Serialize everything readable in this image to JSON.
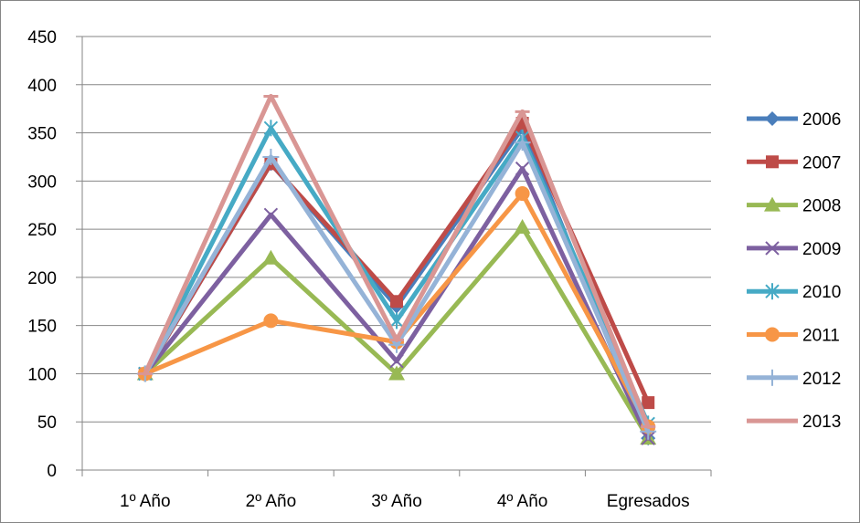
{
  "chart_data": {
    "type": "line",
    "title": "",
    "xlabel": "",
    "ylabel": "",
    "categories": [
      "1º Año",
      "2º Año",
      "3º Año",
      "4º Año",
      "Egresados"
    ],
    "ylim": [
      0,
      450
    ],
    "yticks": [
      0,
      50,
      100,
      150,
      200,
      250,
      300,
      350,
      400,
      450
    ],
    "grid": "horizontal",
    "legend_position": "right",
    "series": [
      {
        "name": "2006",
        "color": "#4a7ebb",
        "marker": "diamond",
        "values": [
          100,
          318,
          170,
          355,
          33
        ]
      },
      {
        "name": "2007",
        "color": "#be4b48",
        "marker": "square",
        "values": [
          100,
          318,
          175,
          360,
          70
        ]
      },
      {
        "name": "2008",
        "color": "#98b954",
        "marker": "triangle",
        "values": [
          100,
          220,
          100,
          252,
          33
        ]
      },
      {
        "name": "2009",
        "color": "#7d60a0",
        "marker": "x",
        "values": [
          100,
          265,
          113,
          313,
          33
        ]
      },
      {
        "name": "2010",
        "color": "#46aac5",
        "marker": "star",
        "values": [
          100,
          355,
          155,
          345,
          48
        ]
      },
      {
        "name": "2011",
        "color": "#f79646",
        "marker": "circle",
        "values": [
          100,
          155,
          133,
          287,
          45
        ]
      },
      {
        "name": "2012",
        "color": "#95b3d7",
        "marker": "plus",
        "values": [
          100,
          325,
          130,
          340,
          40
        ]
      },
      {
        "name": "2013",
        "color": "#d99694",
        "marker": "dash",
        "values": [
          100,
          388,
          135,
          372,
          45
        ]
      }
    ]
  }
}
